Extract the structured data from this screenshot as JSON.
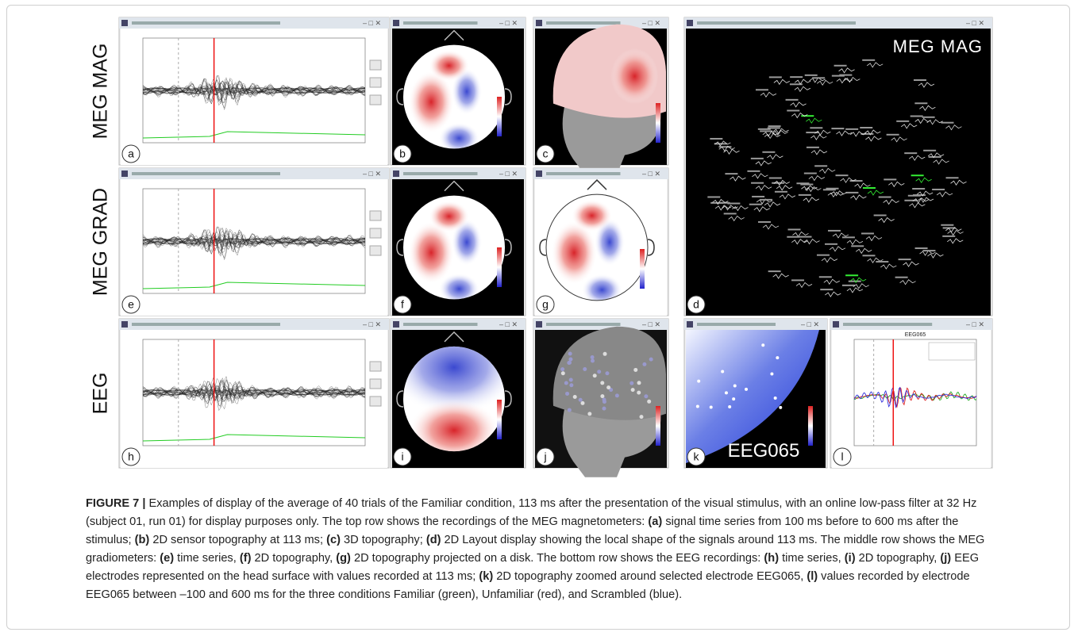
{
  "row_labels": [
    "MEG MAG",
    "MEG GRAD",
    "EEG"
  ],
  "panels": [
    {
      "letter": "a",
      "kind": "timeseries"
    },
    {
      "letter": "b",
      "kind": "topo"
    },
    {
      "letter": "c",
      "kind": "head"
    },
    {
      "letter": "d",
      "kind": "layout",
      "overlay": "MEG MAG"
    },
    {
      "letter": "e",
      "kind": "timeseries"
    },
    {
      "letter": "f",
      "kind": "topo"
    },
    {
      "letter": "g",
      "kind": "disk"
    },
    {
      "letter": "h",
      "kind": "timeseries"
    },
    {
      "letter": "i",
      "kind": "topo-eeg"
    },
    {
      "letter": "j",
      "kind": "head-eeg"
    },
    {
      "letter": "k",
      "kind": "zoom",
      "overlay": "EEG065"
    },
    {
      "letter": "l",
      "kind": "erp",
      "overlay": "EEG065"
    }
  ],
  "caption": {
    "segments": [
      {
        "text": "FIGURE 7 |",
        "bold": true
      },
      {
        "text": " Examples of display of the average of 40 trials of the Familiar condition, 113 ms after the presentation of the visual stimulus, with an online low-pass filter at 32 Hz (subject 01, run 01) for display purposes only. The top row shows the recordings of the MEG magnetometers: ",
        "bold": false
      },
      {
        "text": "(a)",
        "bold": true
      },
      {
        "text": " signal time series from 100 ms before to 600 ms after the stimulus; ",
        "bold": false
      },
      {
        "text": "(b)",
        "bold": true
      },
      {
        "text": " 2D sensor topography at 113 ms; ",
        "bold": false
      },
      {
        "text": "(c)",
        "bold": true
      },
      {
        "text": " 3D topography; ",
        "bold": false
      },
      {
        "text": "(d)",
        "bold": true
      },
      {
        "text": " 2D Layout display showing the local shape of the signals around 113 ms. The middle row shows the MEG gradiometers: ",
        "bold": false
      },
      {
        "text": "(e)",
        "bold": true
      },
      {
        "text": " time series, ",
        "bold": false
      },
      {
        "text": "(f)",
        "bold": true
      },
      {
        "text": " 2D topography, ",
        "bold": false
      },
      {
        "text": "(g)",
        "bold": true
      },
      {
        "text": " 2D topography projected on a disk. The bottom row shows the EEG recordings: ",
        "bold": false
      },
      {
        "text": "(h)",
        "bold": true
      },
      {
        "text": " time series, ",
        "bold": false
      },
      {
        "text": "(i)",
        "bold": true
      },
      {
        "text": " 2D topography, ",
        "bold": false
      },
      {
        "text": "(j)",
        "bold": true
      },
      {
        "text": " EEG electrodes represented on the head surface with values recorded at 113 ms; ",
        "bold": false
      },
      {
        "text": "(k)",
        "bold": true
      },
      {
        "text": " 2D topography zoomed around selected electrode EEG065, ",
        "bold": false
      },
      {
        "text": "(l)",
        "bold": true
      },
      {
        "text": " values recorded by electrode EEG065 between –100 and 600 ms for the three conditions Familiar (green), Unfamiliar (red), and Scrambled (blue).",
        "bold": false
      }
    ]
  }
}
